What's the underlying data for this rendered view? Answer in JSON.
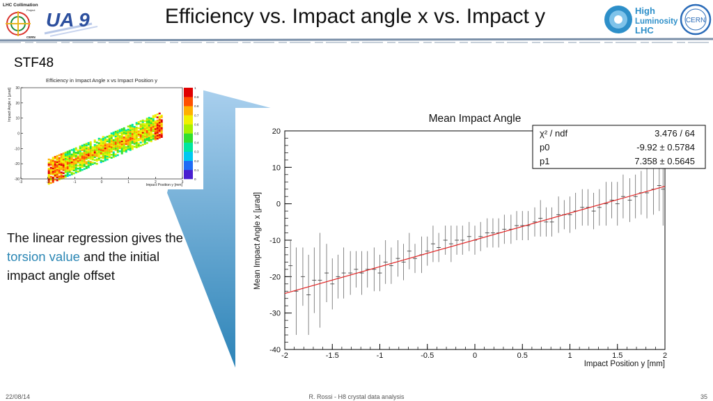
{
  "slide": {
    "title": "Efficiency vs. Impact angle x vs. Impact y",
    "subtitle": "STF48",
    "body_parts": [
      "The linear regression gives the ",
      "torsion value",
      " and the initial impact angle offset"
    ],
    "footer_date": "22/08/14",
    "footer_center": "R. Rossi - H8 crystal data analysis",
    "footer_page": "35"
  },
  "logos": {
    "left1_line1": "LHC Collimation",
    "left1_line2": "Project",
    "left1_line3": "CERN",
    "left2": "UA 9",
    "right1_line1": "High",
    "right1_line2": "Luminosity",
    "right1_line3": "LHC",
    "right2": "CERN"
  },
  "colors": {
    "accent_text": "#2a86b4",
    "fit_line": "#e02020",
    "callout_top": "#aad0ee",
    "callout_bottom": "#2d84b8"
  },
  "chart_data": [
    {
      "type": "heatmap",
      "title": "Efficiency in Impact Angle x vs Impact Position y",
      "xlabel": "Impact Position y [mm]",
      "ylabel": "Impact Angle x [µrad]",
      "xlim": [
        -3,
        3
      ],
      "ylim": [
        -30,
        30
      ],
      "xticks": [
        "-3",
        "-2",
        "-1",
        "0",
        "1",
        "2",
        "3"
      ],
      "yticks": [
        "30",
        "20",
        "10",
        "0",
        "-10",
        "-20",
        "-30"
      ],
      "colorbar_ticks": [
        "1",
        "0.9",
        "0.8",
        "0.7",
        "0.6",
        "0.5",
        "0.4",
        "0.3",
        "0.2",
        "0.1",
        "0"
      ],
      "band": {
        "slope": 7.36,
        "intercept": -9.9,
        "y_range": [
          -2.0,
          2.2
        ],
        "halfwidth": 8
      }
    },
    {
      "type": "scatter",
      "title": "Mean Impact Angle",
      "xlabel": "Impact Position y [mm]",
      "ylabel": "Mean Impact Angle x [µrad]",
      "xlim": [
        -2,
        2
      ],
      "ylim": [
        -40,
        20
      ],
      "xticks": [
        "-2",
        "-1.5",
        "-1",
        "-0.5",
        "0",
        "0.5",
        "1",
        "1.5",
        "2"
      ],
      "yticks": [
        "20",
        "10",
        "0",
        "-10",
        "-20",
        "-30",
        "-40"
      ],
      "grid": false,
      "stats": [
        {
          "label": "χ² / ndf",
          "value": "3.476 / 64"
        },
        {
          "label": "p0",
          "value": "-9.92 ± 0.5784"
        },
        {
          "label": "p1",
          "value": "7.358 ± 0.5645"
        }
      ],
      "fit": {
        "p0": -9.92,
        "p1": 7.358
      },
      "x": [
        -1.94,
        -1.88,
        -1.81,
        -1.75,
        -1.69,
        -1.63,
        -1.56,
        -1.5,
        -1.44,
        -1.38,
        -1.31,
        -1.25,
        -1.19,
        -1.13,
        -1.06,
        -1.0,
        -0.94,
        -0.88,
        -0.81,
        -0.75,
        -0.69,
        -0.63,
        -0.56,
        -0.5,
        -0.44,
        -0.38,
        -0.31,
        -0.25,
        -0.19,
        -0.13,
        -0.06,
        0.0,
        0.06,
        0.13,
        0.19,
        0.25,
        0.31,
        0.38,
        0.44,
        0.5,
        0.56,
        0.63,
        0.69,
        0.75,
        0.81,
        0.88,
        0.94,
        1.0,
        1.06,
        1.13,
        1.19,
        1.25,
        1.31,
        1.38,
        1.44,
        1.5,
        1.56,
        1.63,
        1.69,
        1.75,
        1.81,
        1.88,
        1.94,
        1.98
      ],
      "y": [
        -17,
        -24,
        -20,
        -25,
        -21,
        -21,
        -19,
        -22,
        -20,
        -19,
        -19,
        -18,
        -19,
        -18,
        -18,
        -19,
        -16,
        -17,
        -15,
        -16,
        -13,
        -15,
        -14,
        -13,
        -11,
        -12,
        -10,
        -11,
        -10,
        -10,
        -9,
        -10,
        -9,
        -8,
        -8,
        -8,
        -7,
        -7,
        -6,
        -6,
        -6,
        -5,
        -4,
        -5,
        -5,
        -3,
        -3,
        -3,
        -2,
        -1,
        -1,
        -2,
        -1,
        0,
        1,
        0,
        2,
        1,
        2,
        3,
        3,
        4,
        5,
        4
      ],
      "err": [
        7,
        12,
        8,
        11,
        9,
        13,
        8,
        7,
        6,
        7,
        6,
        5,
        6,
        5,
        6,
        5,
        6,
        5,
        5,
        5,
        5,
        4,
        5,
        4,
        5,
        4,
        4,
        5,
        4,
        4,
        4,
        4,
        4,
        4,
        4,
        4,
        4,
        4,
        4,
        4,
        4,
        4,
        5,
        4,
        4,
        5,
        4,
        5,
        5,
        5,
        5,
        5,
        5,
        6,
        5,
        6,
        6,
        6,
        6,
        6,
        7,
        7,
        7,
        10
      ]
    }
  ]
}
